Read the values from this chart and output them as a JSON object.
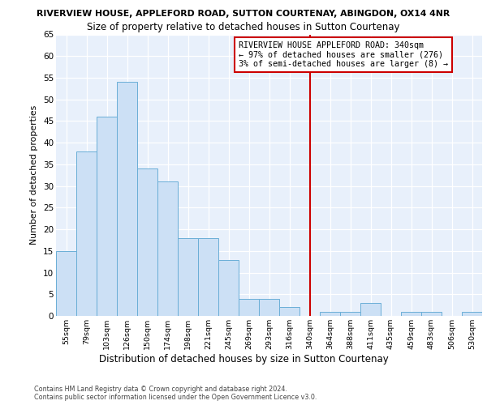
{
  "title_line1": "RIVERVIEW HOUSE, APPLEFORD ROAD, SUTTON COURTENAY, ABINGDON, OX14 4NR",
  "title_line2": "Size of property relative to detached houses in Sutton Courtenay",
  "xlabel": "Distribution of detached houses by size in Sutton Courtenay",
  "ylabel": "Number of detached properties",
  "categories": [
    "55sqm",
    "79sqm",
    "103sqm",
    "126sqm",
    "150sqm",
    "174sqm",
    "198sqm",
    "221sqm",
    "245sqm",
    "269sqm",
    "293sqm",
    "316sqm",
    "340sqm",
    "364sqm",
    "388sqm",
    "411sqm",
    "435sqm",
    "459sqm",
    "483sqm",
    "506sqm",
    "530sqm"
  ],
  "values": [
    15,
    38,
    46,
    54,
    34,
    31,
    18,
    18,
    13,
    4,
    4,
    2,
    0,
    1,
    1,
    3,
    0,
    1,
    1,
    0,
    1
  ],
  "bar_color": "#cce0f5",
  "bar_edge_color": "#6aaed6",
  "highlight_line_color": "#cc0000",
  "highlight_index": 12,
  "annotation_lines": [
    "RIVERVIEW HOUSE APPLEFORD ROAD: 340sqm",
    "← 97% of detached houses are smaller (276)",
    "3% of semi-detached houses are larger (8) →"
  ],
  "annotation_box_edge_color": "#cc0000",
  "ylim": [
    0,
    65
  ],
  "yticks": [
    0,
    5,
    10,
    15,
    20,
    25,
    30,
    35,
    40,
    45,
    50,
    55,
    60,
    65
  ],
  "footer_line1": "Contains HM Land Registry data © Crown copyright and database right 2024.",
  "footer_line2": "Contains public sector information licensed under the Open Government Licence v3.0.",
  "fig_bg_color": "#ffffff",
  "plot_bg_color": "#e8f0fb"
}
